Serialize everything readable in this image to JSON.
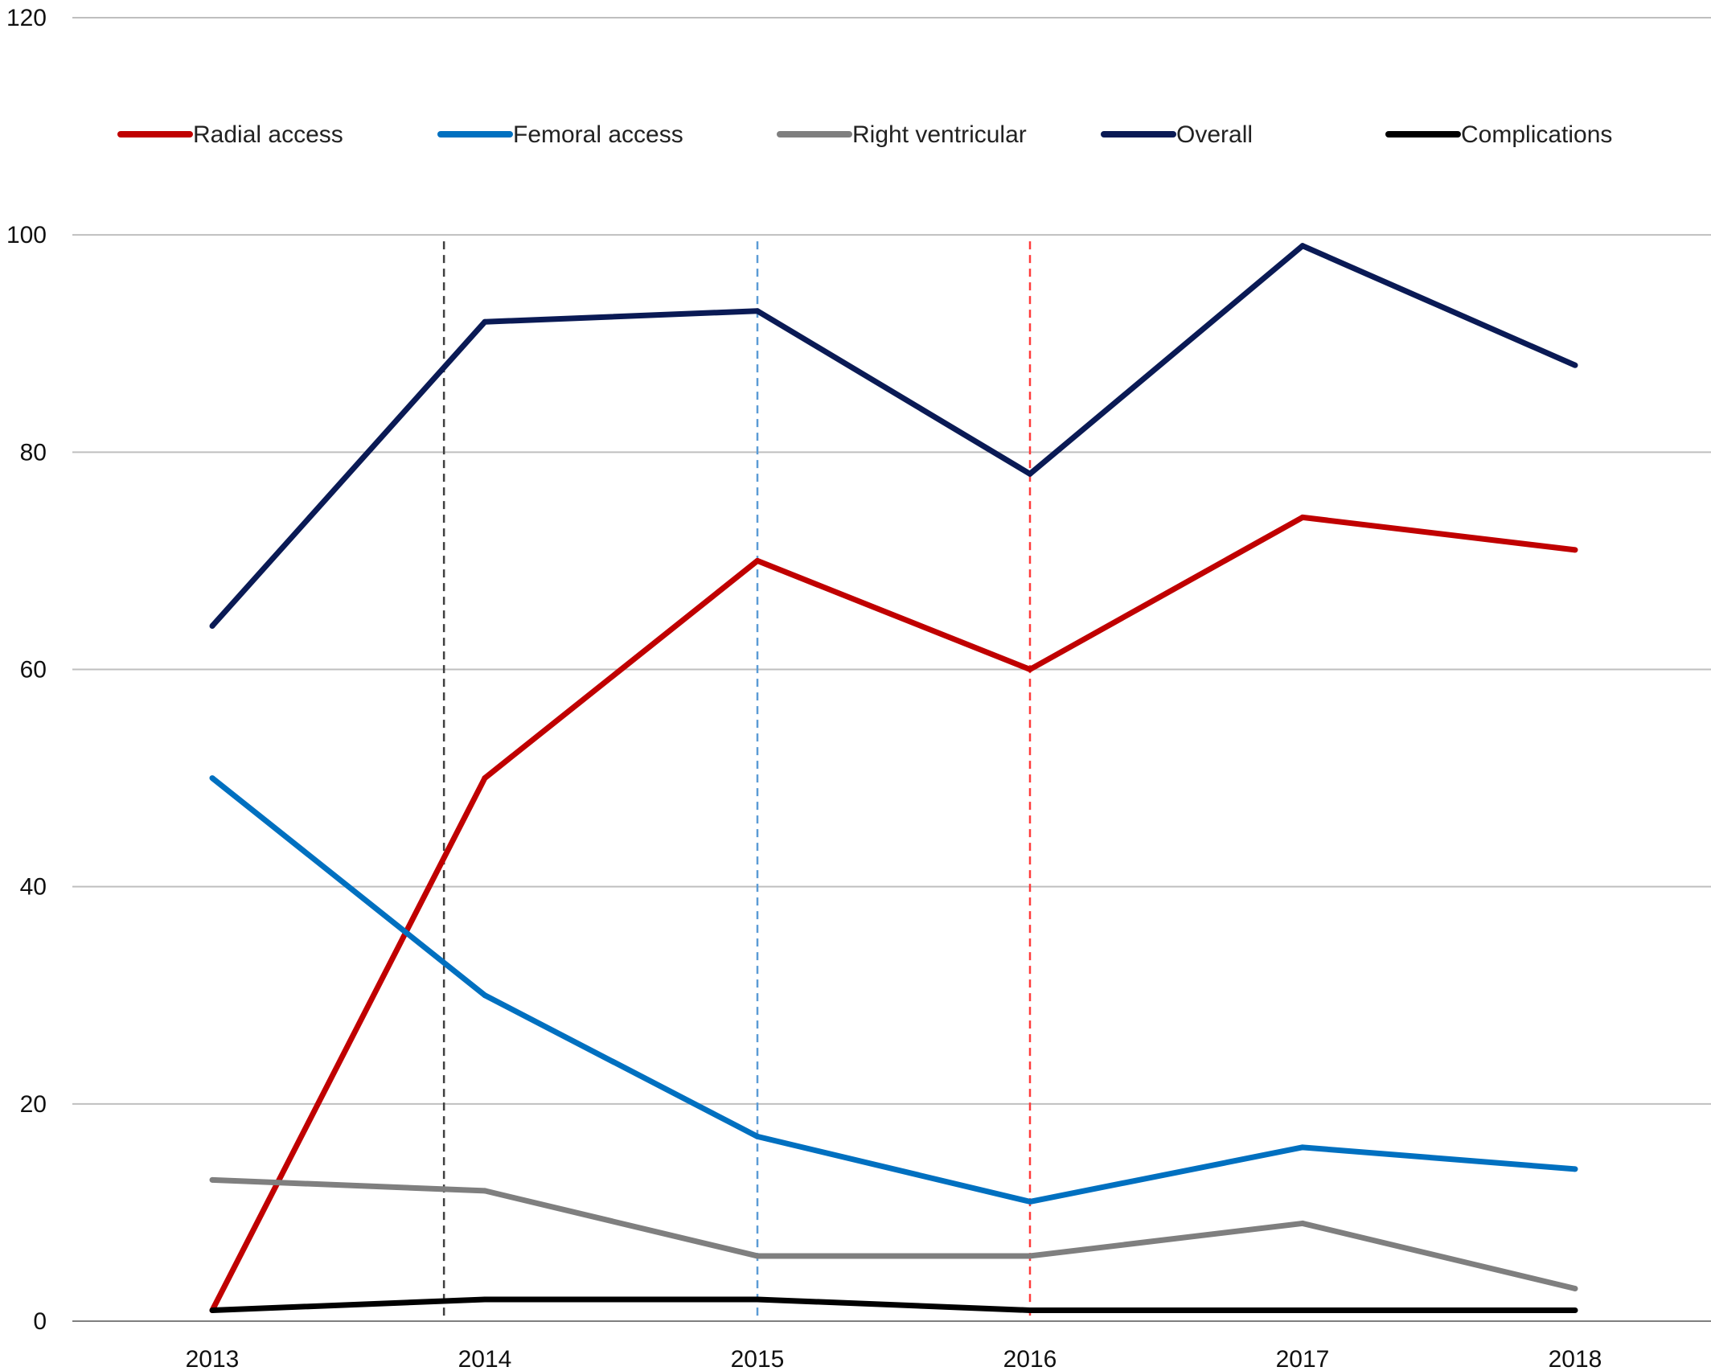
{
  "chart_data": {
    "type": "line",
    "title": "",
    "xlabel": "",
    "ylabel": "",
    "categories": [
      "2013",
      "2014",
      "2015",
      "2016",
      "2017",
      "2018"
    ],
    "ylim": [
      0,
      120
    ],
    "yticks": [
      0,
      20,
      40,
      60,
      80,
      100,
      120
    ],
    "ytick_labels": [
      "0",
      "20",
      "40",
      "60",
      "80",
      "100",
      "120"
    ],
    "grid": true,
    "legend_position": "top",
    "series": [
      {
        "name": "Radial access",
        "color": "#c00000",
        "values": [
          1,
          50,
          70,
          60,
          74,
          71
        ]
      },
      {
        "name": "Femoral access",
        "color": "#0070c0",
        "values": [
          50,
          30,
          17,
          11,
          16,
          14
        ]
      },
      {
        "name": "Right ventricular",
        "color": "#7f7f7f",
        "values": [
          13,
          12,
          6,
          6,
          9,
          3
        ]
      },
      {
        "name": "Overall",
        "color": "#0a1a55",
        "values": [
          64,
          92,
          93,
          78,
          99,
          88
        ]
      },
      {
        "name": "Complications",
        "color": "#000000",
        "values": [
          1,
          2,
          2,
          1,
          1,
          1
        ]
      }
    ],
    "reference_lines": [
      {
        "x": 2013.85,
        "color": "#404040",
        "style": "dashed"
      },
      {
        "x": 2015.0,
        "color": "#5b9bd5",
        "style": "dashed"
      },
      {
        "x": 2016.0,
        "color": "#ff3b3b",
        "style": "dashed"
      }
    ]
  }
}
